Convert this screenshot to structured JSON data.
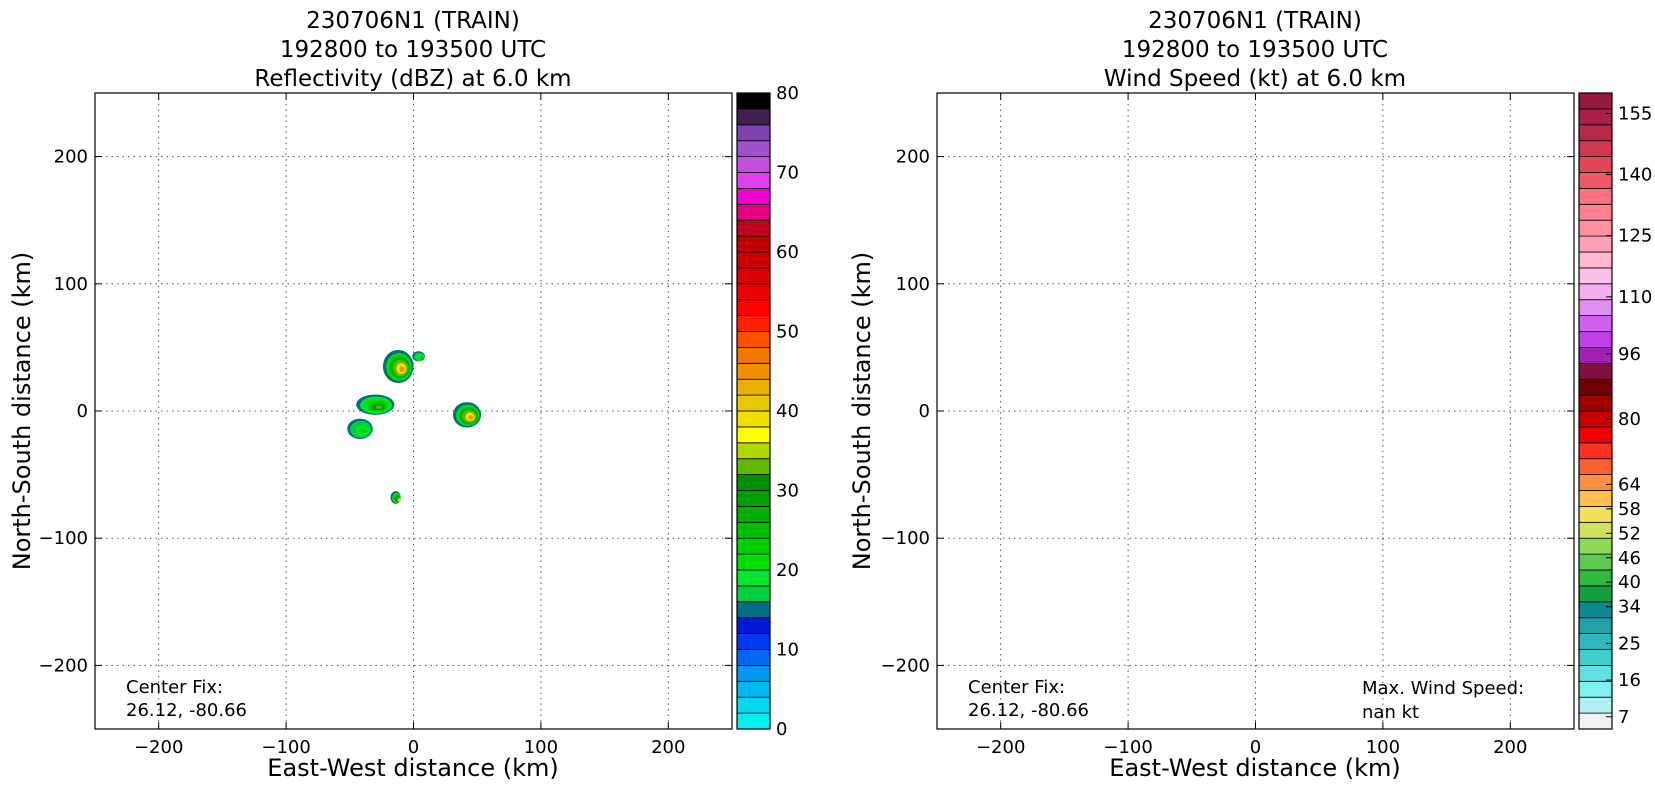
{
  "chart_data": [
    {
      "type": "heatmap",
      "title_lines": [
        "230706N1 (TRAIN)",
        "192800 to 193500 UTC",
        "Reflectivity (dBZ) at 6.0 km"
      ],
      "xlabel": "East-West distance (km)",
      "ylabel": "North-South distance (km)",
      "xlim": [
        -250,
        250
      ],
      "ylim": [
        -250,
        250
      ],
      "xticks": [
        -200,
        -100,
        0,
        100,
        200
      ],
      "yticks": [
        -200,
        -100,
        0,
        100,
        200
      ],
      "xtick_labels": [
        "−200",
        "−100",
        "0",
        "100",
        "200"
      ],
      "ytick_labels": [
        "−200",
        "−100",
        "0",
        "100",
        "200"
      ],
      "grid": true,
      "annotation_lines": [
        "Center Fix:",
        "26.12, -80.66"
      ],
      "colorbar": {
        "min": 0,
        "max": 80,
        "ticks": [
          0,
          10,
          20,
          30,
          40,
          50,
          60,
          70,
          80
        ],
        "tick_labels": [
          "0",
          "10",
          "20",
          "30",
          "40",
          "50",
          "60",
          "70",
          "80"
        ],
        "colors": [
          "#00f0f0",
          "#00d8f0",
          "#00b8f0",
          "#0098f0",
          "#0068f0",
          "#0038f0",
          "#0018d8",
          "#007080",
          "#00d040",
          "#00e830",
          "#00e000",
          "#00d000",
          "#00c000",
          "#00b000",
          "#00a000",
          "#009000",
          "#60b800",
          "#b0d800",
          "#ffff00",
          "#f0e000",
          "#e8c800",
          "#e8b000",
          "#f09000",
          "#f07800",
          "#ff5000",
          "#ff2000",
          "#ff0000",
          "#e80000",
          "#d80000",
          "#c80000",
          "#c00000",
          "#c00020",
          "#e00080",
          "#f000d0",
          "#e040f0",
          "#c050e0",
          "#a050d0",
          "#8040b0",
          "#402050",
          "#000000"
        ]
      },
      "echoes": [
        {
          "x": -12,
          "y": 35,
          "rx": 12,
          "ry": 13,
          "peak_dbz": 45
        },
        {
          "x": 4,
          "y": 43,
          "rx": 5,
          "ry": 4,
          "peak_dbz": 24
        },
        {
          "x": -30,
          "y": 5,
          "rx": 15,
          "ry": 8,
          "peak_dbz": 32
        },
        {
          "x": -42,
          "y": -14,
          "rx": 10,
          "ry": 8,
          "peak_dbz": 22
        },
        {
          "x": 42,
          "y": -3,
          "rx": 11,
          "ry": 10,
          "peak_dbz": 45
        },
        {
          "x": -14,
          "y": -68,
          "rx": 4,
          "ry": 5,
          "peak_dbz": 38
        }
      ]
    },
    {
      "type": "heatmap",
      "title_lines": [
        "230706N1 (TRAIN)",
        "192800 to 193500 UTC",
        "Wind Speed (kt) at 6.0 km"
      ],
      "xlabel": "East-West distance (km)",
      "ylabel": "North-South distance (km)",
      "xlim": [
        -250,
        250
      ],
      "ylim": [
        -250,
        250
      ],
      "xticks": [
        -200,
        -100,
        0,
        100,
        200
      ],
      "yticks": [
        -200,
        -100,
        0,
        100,
        200
      ],
      "xtick_labels": [
        "−200",
        "−100",
        "0",
        "100",
        "200"
      ],
      "ytick_labels": [
        "−200",
        "−100",
        "0",
        "100",
        "200"
      ],
      "grid": true,
      "annotation_lines": [
        "Center Fix:",
        "26.12, -80.66"
      ],
      "annotation2_lines": [
        "Max. Wind Speed:",
        "nan kt"
      ],
      "colorbar": {
        "min": 4,
        "max": 160,
        "ticks": [
          7,
          16,
          25,
          34,
          40,
          46,
          52,
          58,
          64,
          80,
          96,
          110,
          125,
          140,
          155
        ],
        "tick_labels": [
          "7",
          "16",
          "25",
          "34",
          "40",
          "46",
          "52",
          "58",
          "64",
          "80",
          "96",
          "110",
          "125",
          "140",
          "155"
        ],
        "colors": [
          "#f0f0f0",
          "#b0f0f0",
          "#80f0f0",
          "#60e0e0",
          "#40d0d0",
          "#30b8c0",
          "#20a0a8",
          "#108890",
          "#10a040",
          "#30b840",
          "#60c850",
          "#90d858",
          "#d0e060",
          "#f0e060",
          "#ffc050",
          "#ff9040",
          "#ff6030",
          "#ff3020",
          "#f00000",
          "#c80000",
          "#a00000",
          "#700000",
          "#801040",
          "#a020b0",
          "#c040e8",
          "#d060f0",
          "#e090f0",
          "#f0b0f0",
          "#f8c0e8",
          "#ffb8d0",
          "#ffa0b8",
          "#ff90a0",
          "#ff8090",
          "#ff7080",
          "#f05868",
          "#e04858",
          "#d03850",
          "#b82848",
          "#a82048",
          "#981840"
        ]
      },
      "echoes": []
    }
  ]
}
